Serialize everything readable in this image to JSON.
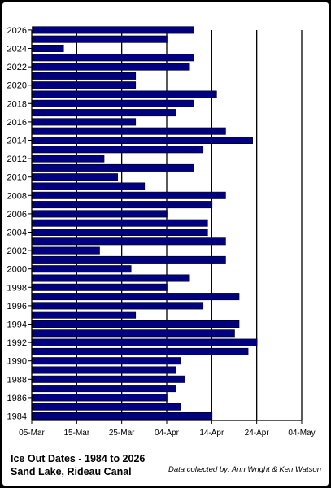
{
  "chart_data": {
    "type": "bar",
    "orientation": "horizontal",
    "title_lines": [
      "Ice Out Dates - 1984 to 2026",
      "Sand Lake, Rideau Canal"
    ],
    "credit": "Data collected by: Ann Wright & Ken Watson",
    "x_axis": {
      "type": "date",
      "range": [
        "03-05",
        "05-04"
      ],
      "tick_labels": [
        "05-Mar",
        "15-Mar",
        "25-Mar",
        "04-Apr",
        "14-Apr",
        "24-Apr",
        "04-May"
      ],
      "tick_dates": [
        "03-05",
        "03-15",
        "03-25",
        "04-04",
        "04-14",
        "04-24",
        "05-04"
      ],
      "gridlines": true
    },
    "y_axis": {
      "tick_labels": [
        "1984",
        "1986",
        "1988",
        "1990",
        "1992",
        "1994",
        "1996",
        "1998",
        "2000",
        "2002",
        "2004",
        "2006",
        "2008",
        "2010",
        "2012",
        "2014",
        "2016",
        "2018",
        "2020",
        "2022",
        "2024",
        "2026"
      ]
    },
    "bar_color": "#000080",
    "categories": [
      1984,
      1985,
      1986,
      1987,
      1988,
      1989,
      1990,
      1991,
      1992,
      1993,
      1994,
      1995,
      1996,
      1997,
      1998,
      1999,
      2000,
      2001,
      2002,
      2003,
      2004,
      2005,
      2006,
      2007,
      2008,
      2009,
      2010,
      2011,
      2012,
      2013,
      2014,
      2015,
      2016,
      2017,
      2018,
      2019,
      2020,
      2021,
      2022,
      2023,
      2024,
      2025,
      2026
    ],
    "values": [
      "04-14",
      "04-07",
      "04-04",
      "04-06",
      "04-08",
      "04-06",
      "04-07",
      "04-22",
      "04-24",
      "04-19",
      "04-20",
      "03-28",
      "04-12",
      "04-20",
      "04-04",
      "04-09",
      "03-27",
      "04-17",
      "03-20",
      "04-17",
      "04-13",
      "04-13",
      "04-04",
      "04-14",
      "04-17",
      "03-30",
      "03-24",
      "04-10",
      "03-21",
      "04-12",
      "04-23",
      "04-17",
      "03-28",
      "04-06",
      "04-10",
      "04-15",
      "03-28",
      "03-28",
      "04-09",
      "04-10",
      "03-12",
      "04-04",
      "04-10"
    ]
  }
}
